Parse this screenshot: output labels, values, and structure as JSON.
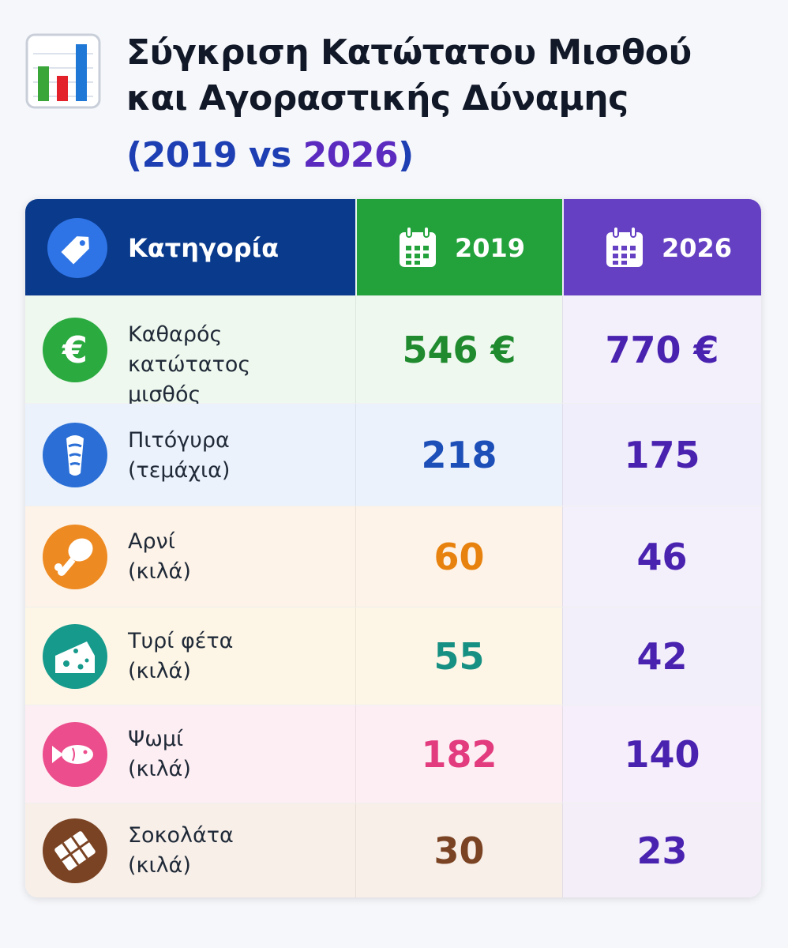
{
  "title_line1": "Σύγκριση Κατώτατου Μισθού",
  "title_line2": "και Αγοραστικής Δύναμης",
  "subtitle": {
    "open": "(",
    "year_a": "2019",
    "vs": "vs",
    "year_b": "2026",
    "close": ")"
  },
  "icons": {
    "logo": "bar-chart-icon",
    "header_category": "tag-icon",
    "header_year": "calendar-icon"
  },
  "colors": {
    "header_category": "#0a3a8c",
    "header_2019": "#23a23c",
    "header_2026": "#6540c3",
    "value_2026": "#4a22b0"
  },
  "chart_data": {
    "type": "table",
    "columns": [
      "Κατηγορία",
      "2019",
      "2026"
    ],
    "rows": [
      {
        "label_line1": "Καθαρός κατώτατος",
        "label_line2": "μισθός",
        "v2019": "546 €",
        "v2026": "770 €",
        "icon": "euro-icon",
        "icon_color": "#2aaa3f",
        "row_bg": "#eef8ee",
        "row_bg_2026": "#f3effb",
        "value_color_2019": "#1f8a2e"
      },
      {
        "label_line1": "Πιτόγυρα",
        "label_line2": "(τεμάχια)",
        "v2019": "218",
        "v2026": "175",
        "icon": "gyro-wrap-icon",
        "icon_color": "#2b6fd6",
        "row_bg": "#ebf2fc",
        "row_bg_2026": "#f1eefb",
        "value_color_2019": "#1d4fb8"
      },
      {
        "label_line1": "Αρνί",
        "label_line2": "(κιλά)",
        "v2019": "60",
        "v2026": "46",
        "icon": "meat-drumstick-icon",
        "icon_color": "#ee8a22",
        "row_bg": "#fdf3e8",
        "row_bg_2026": "#f3effb",
        "value_color_2019": "#e8820f"
      },
      {
        "label_line1": "Τυρί φέτα",
        "label_line2": "(κιλά)",
        "v2019": "55",
        "v2026": "42",
        "icon": "cheese-icon",
        "icon_color": "#159a8c",
        "row_bg": "#fdf6e6",
        "row_bg_2026": "#f2effb",
        "value_color_2019": "#169082"
      },
      {
        "label_line1": "Ψωμί",
        "label_line2": "(κιλά)",
        "v2019": "182",
        "v2026": "140",
        "icon": "fish-icon",
        "icon_color": "#ec4d8c",
        "row_bg": "#fdeef3",
        "row_bg_2026": "#f6eefb",
        "value_color_2019": "#e23b7e"
      },
      {
        "label_line1": "Σοκολάτα",
        "label_line2": "(κιλά)",
        "v2019": "30",
        "v2026": "23",
        "icon": "chocolate-bar-icon",
        "icon_color": "#7a4323",
        "row_bg": "#f8efe9",
        "row_bg_2026": "#f4eef9",
        "value_color_2019": "#7a4323"
      }
    ]
  }
}
